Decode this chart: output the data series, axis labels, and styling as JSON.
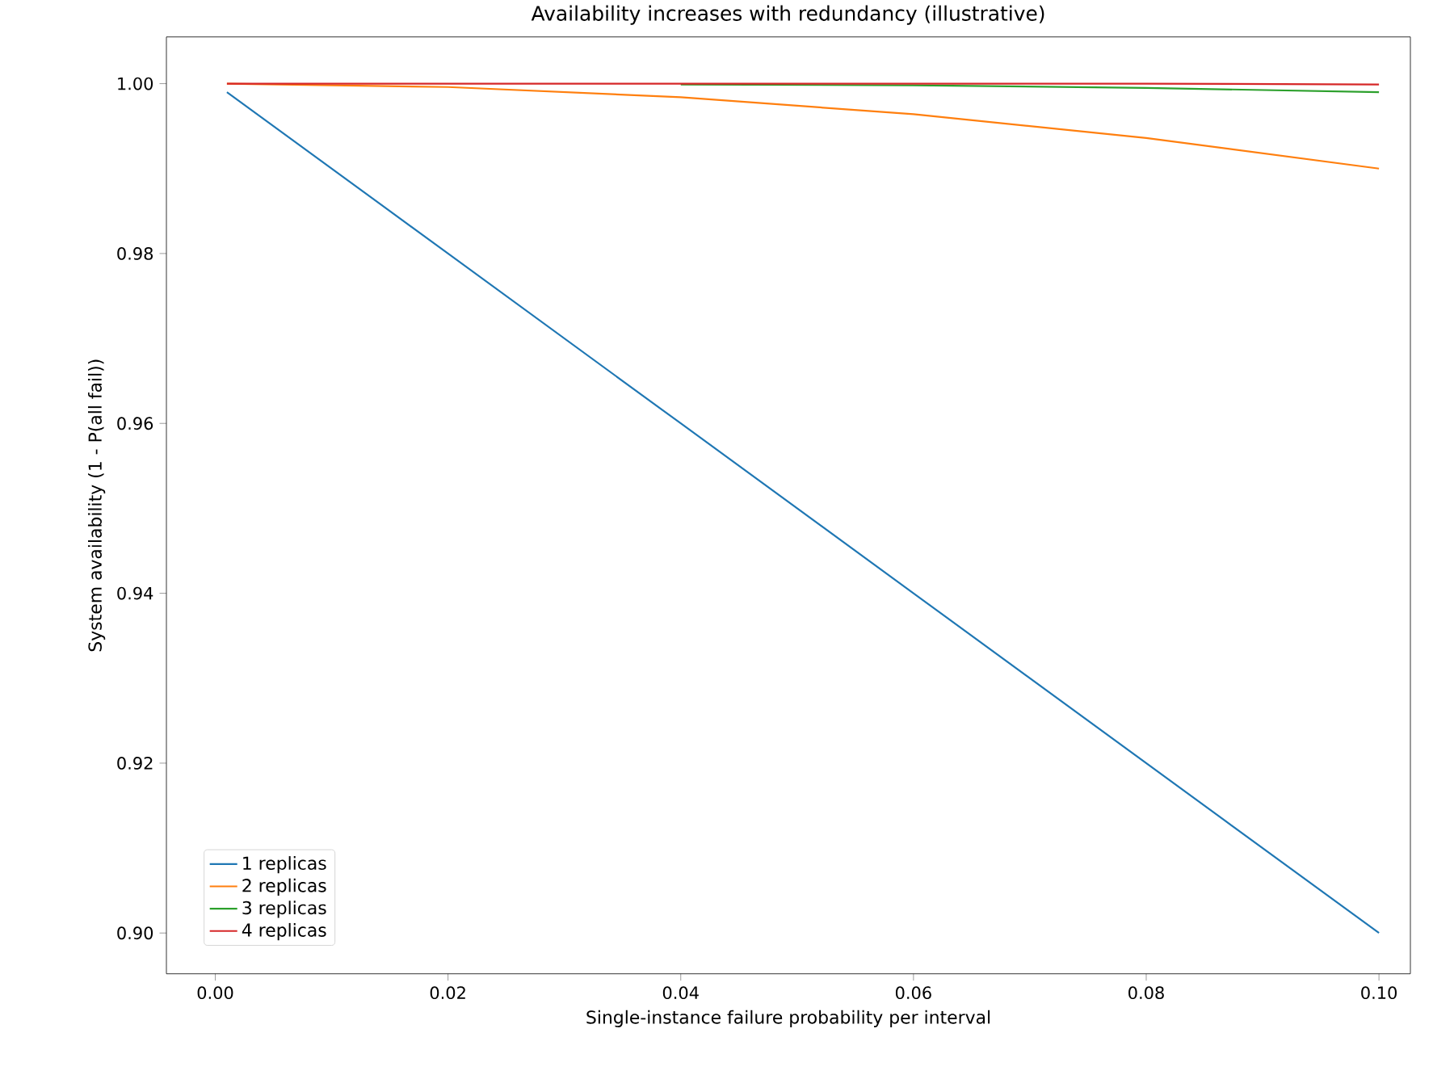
{
  "chart_data": {
    "type": "line",
    "title": "Availability increases with redundancy (illustrative)",
    "xlabel": "Single-instance failure probability per interval",
    "ylabel": "System availability (1 - P(all fail))",
    "x": [
      0.001,
      0.02,
      0.04,
      0.06,
      0.08,
      0.1
    ],
    "series": [
      {
        "name": "1 replicas",
        "color": "#1f77b4",
        "values": [
          0.999,
          0.98,
          0.96,
          0.94,
          0.92,
          0.9
        ]
      },
      {
        "name": "2 replicas",
        "color": "#ff7f0e",
        "values": [
          1.0,
          0.9996,
          0.9984,
          0.9964,
          0.9936,
          0.99
        ]
      },
      {
        "name": "3 replicas",
        "color": "#2ca02c",
        "values": [
          null,
          null,
          0.9999,
          0.9998,
          0.9995,
          0.999
        ]
      },
      {
        "name": "4 replicas",
        "color": "#d62728",
        "values": [
          1.0,
          1.0,
          1.0,
          1.0,
          1.0,
          0.9999
        ]
      }
    ],
    "xlim": [
      -0.0042,
      0.1027
    ],
    "ylim": [
      0.8952,
      1.0055
    ],
    "xticks": [
      {
        "value": 0,
        "label": "0.00"
      },
      {
        "value": 0.02,
        "label": "0.02"
      },
      {
        "value": 0.04,
        "label": "0.04"
      },
      {
        "value": 0.06,
        "label": "0.06"
      },
      {
        "value": 0.08,
        "label": "0.08"
      },
      {
        "value": 0.1,
        "label": "0.10"
      }
    ],
    "yticks": [
      {
        "value": 0.9,
        "label": "0.90"
      },
      {
        "value": 0.92,
        "label": "0.92"
      },
      {
        "value": 0.94,
        "label": "0.94"
      },
      {
        "value": 0.96,
        "label": "0.96"
      },
      {
        "value": 0.98,
        "label": "0.98"
      },
      {
        "value": 1.0,
        "label": "1.00"
      }
    ],
    "legend": "bottom left",
    "marker": "none",
    "line_style": "solid",
    "grid": false
  }
}
